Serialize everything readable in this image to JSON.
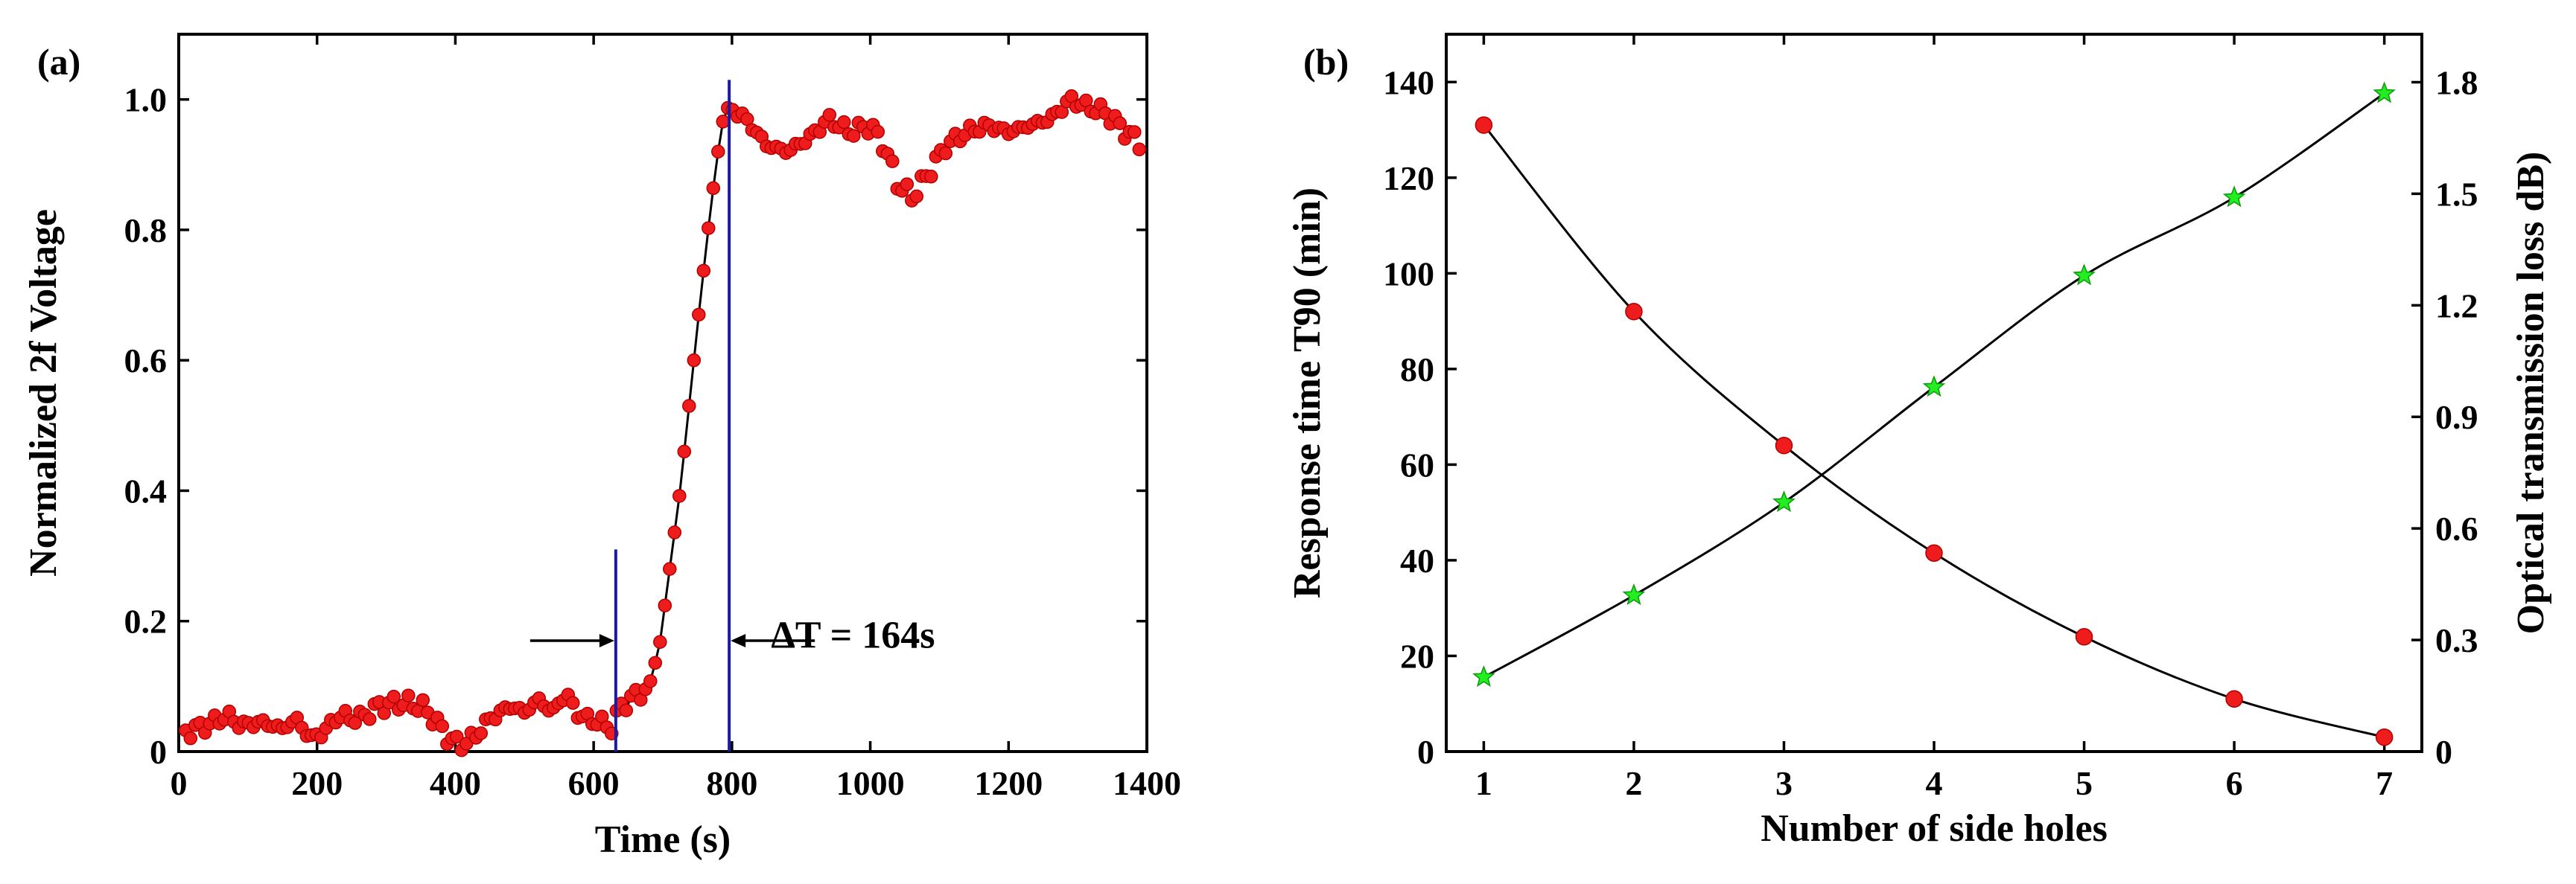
{
  "chart_data": [
    {
      "panel_label": "(a)",
      "type": "scatter",
      "xlabel": "Time (s)",
      "ylabel": "Normalized 2f Voltage",
      "xlim": [
        0,
        1400
      ],
      "ylim": [
        0,
        1.1
      ],
      "xticks": [
        0,
        200,
        400,
        600,
        800,
        1000,
        1200,
        1400
      ],
      "xtick_labels": [
        "0",
        "200",
        "400",
        "600",
        "800",
        "1000",
        "1200",
        "1400"
      ],
      "yticks": [
        0,
        0.2,
        0.4,
        0.6,
        0.8,
        1.0
      ],
      "ytick_labels": [
        "0",
        "0.2",
        "0.4",
        "0.6",
        "0.8",
        "1.0"
      ],
      "series": [
        {
          "name": "Normalized 2f Voltage",
          "marker": "red sphere",
          "anchors": [
            [
              10,
              0.03
            ],
            [
              40,
              0.04
            ],
            [
              70,
              0.055
            ],
            [
              90,
              0.04
            ],
            [
              120,
              0.045
            ],
            [
              150,
              0.035
            ],
            [
              170,
              0.05
            ],
            [
              190,
              0.02
            ],
            [
              210,
              0.03
            ],
            [
              230,
              0.055
            ],
            [
              260,
              0.05
            ],
            [
              290,
              0.07
            ],
            [
              320,
              0.075
            ],
            [
              350,
              0.07
            ],
            [
              370,
              0.05
            ],
            [
              390,
              0.02
            ],
            [
              410,
              0.01
            ],
            [
              430,
              0.025
            ],
            [
              450,
              0.05
            ],
            [
              480,
              0.07
            ],
            [
              500,
              0.06
            ],
            [
              520,
              0.08
            ],
            [
              540,
              0.06
            ],
            [
              560,
              0.09
            ],
            [
              575,
              0.06
            ],
            [
              590,
              0.05
            ],
            [
              610,
              0.045
            ],
            [
              625,
              0.035
            ],
            [
              640,
              0.07
            ],
            [
              660,
              0.085
            ],
            [
              680,
              0.1
            ],
            [
              695,
              0.16
            ],
            [
              710,
              0.28
            ],
            [
              725,
              0.4
            ],
            [
              740,
              0.55
            ],
            [
              755,
              0.7
            ],
            [
              770,
              0.84
            ],
            [
              785,
              0.96
            ],
            [
              795,
              0.99
            ],
            [
              820,
              0.97
            ],
            [
              850,
              0.93
            ],
            [
              880,
              0.92
            ],
            [
              910,
              0.94
            ],
            [
              940,
              0.97
            ],
            [
              970,
              0.95
            ],
            [
              1000,
              0.96
            ],
            [
              1020,
              0.93
            ],
            [
              1040,
              0.87
            ],
            [
              1060,
              0.85
            ],
            [
              1080,
              0.88
            ],
            [
              1110,
              0.93
            ],
            [
              1140,
              0.95
            ],
            [
              1170,
              0.96
            ],
            [
              1200,
              0.95
            ],
            [
              1230,
              0.96
            ],
            [
              1260,
              0.97
            ],
            [
              1290,
              1.0
            ],
            [
              1310,
              0.99
            ],
            [
              1340,
              0.98
            ],
            [
              1370,
              0.95
            ],
            [
              1395,
              0.93
            ]
          ],
          "sample_step_s": 7
        }
      ],
      "vertical_markers": [
        {
          "x": 632,
          "y_top": 0.31
        },
        {
          "x": 796,
          "y_top": 1.03
        }
      ],
      "annotation": {
        "text": "ΔT = 164s",
        "x": 975,
        "y": 0.18
      }
    },
    {
      "panel_label": "(b)",
      "type": "line",
      "xlabel": "Number of side holes",
      "ylabel": "Response time T90 (min)",
      "ylabel_right": "Optical transmission loss dB)",
      "x": [
        1,
        2,
        3,
        4,
        5,
        6,
        7
      ],
      "xlim": [
        0.75,
        7.25
      ],
      "ylim": [
        0,
        150
      ],
      "ylim_right": [
        0,
        1.929
      ],
      "xticks": [
        1,
        2,
        3,
        4,
        5,
        6,
        7
      ],
      "xtick_labels": [
        "1",
        "2",
        "3",
        "4",
        "5",
        "6",
        "7"
      ],
      "yticks": [
        0,
        20,
        40,
        60,
        80,
        100,
        120,
        140
      ],
      "ytick_labels": [
        "0",
        "20",
        "40",
        "60",
        "80",
        "100",
        "120",
        "140"
      ],
      "yticks_right": [
        0,
        0.3,
        0.6,
        0.9,
        1.2,
        1.5,
        1.8
      ],
      "ytick_labels_right": [
        "0",
        "0.3",
        "0.6",
        "0.9",
        "1.2",
        "1.5",
        "1.8"
      ],
      "series": [
        {
          "name": "Response time T90 (min)",
          "axis": "left",
          "marker": "red sphere",
          "values": [
            131,
            92,
            64,
            41.5,
            24,
            11,
            3
          ]
        },
        {
          "name": "Optical transmission loss dB)",
          "axis": "right",
          "marker": "green star",
          "values": [
            0.2,
            0.42,
            0.67,
            0.98,
            1.28,
            1.49,
            1.77
          ]
        }
      ]
    }
  ]
}
